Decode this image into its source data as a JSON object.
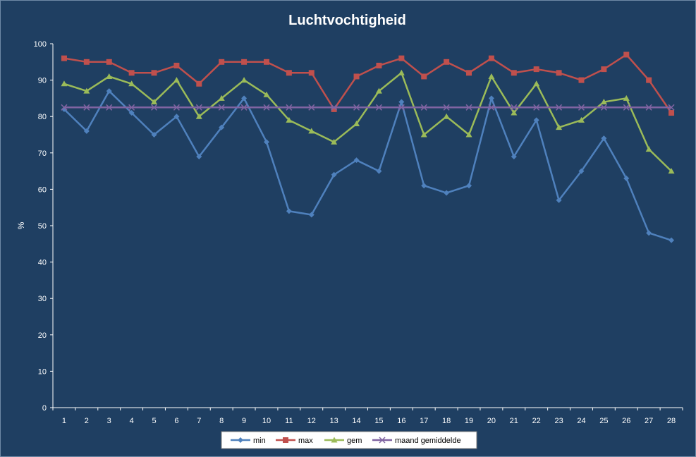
{
  "chart_data": {
    "type": "line",
    "title": "Luchtvochtigheid",
    "xlabel": "",
    "ylabel": "%",
    "ylim": [
      0,
      100
    ],
    "yticks": [
      0,
      10,
      20,
      30,
      40,
      50,
      60,
      70,
      80,
      90,
      100
    ],
    "categories": [
      "1",
      "2",
      "3",
      "4",
      "5",
      "6",
      "7",
      "8",
      "9",
      "10",
      "11",
      "12",
      "13",
      "14",
      "15",
      "16",
      "17",
      "18",
      "19",
      "20",
      "21",
      "22",
      "23",
      "24",
      "25",
      "26",
      "27",
      "28"
    ],
    "grid": false,
    "legend": "bottom",
    "series": [
      {
        "name": "min",
        "color": "#4f81bd",
        "marker": "diamond",
        "values": [
          82,
          76,
          87,
          81,
          75,
          80,
          69,
          77,
          85,
          73,
          54,
          53,
          64,
          68,
          65,
          84,
          61,
          59,
          61,
          85,
          69,
          79,
          57,
          65,
          74,
          63,
          48,
          46
        ]
      },
      {
        "name": "max",
        "color": "#c0504d",
        "marker": "square",
        "values": [
          96,
          95,
          95,
          92,
          92,
          94,
          89,
          95,
          95,
          95,
          92,
          92,
          82,
          91,
          94,
          96,
          91,
          95,
          92,
          96,
          92,
          93,
          92,
          90,
          93,
          97,
          90,
          81
        ]
      },
      {
        "name": "gem",
        "color": "#9bbb59",
        "marker": "triangle",
        "values": [
          89,
          87,
          91,
          89,
          84,
          90,
          80,
          85,
          90,
          86,
          79,
          76,
          73,
          78,
          87,
          92,
          75,
          80,
          75,
          91,
          81,
          89,
          77,
          79,
          84,
          85,
          71,
          65
        ]
      },
      {
        "name": "maand gemiddelde",
        "color": "#8064a2",
        "marker": "x",
        "values": [
          82.5,
          82.5,
          82.5,
          82.5,
          82.5,
          82.5,
          82.5,
          82.5,
          82.5,
          82.5,
          82.5,
          82.5,
          82.5,
          82.5,
          82.5,
          82.5,
          82.5,
          82.5,
          82.5,
          82.5,
          82.5,
          82.5,
          82.5,
          82.5,
          82.5,
          82.5,
          82.5,
          82.5
        ]
      }
    ]
  }
}
